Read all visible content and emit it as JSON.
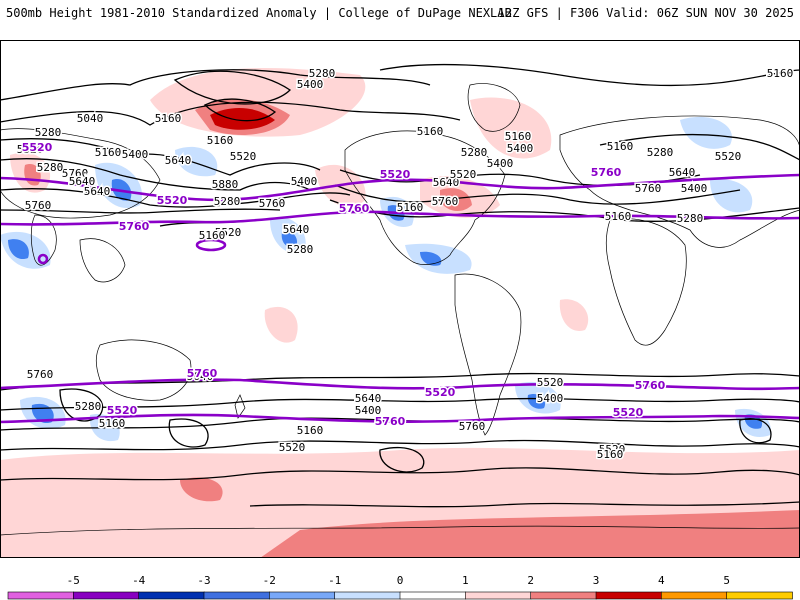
{
  "header": {
    "left": "500mb Height 1981-2010 Standardized Anomaly | College of DuPage NEXLAB",
    "right": "12Z GFS | F306 Valid: 06Z SUN NOV 30 2025"
  },
  "colors": {
    "land_outline": "#000000",
    "contour_black": "#000000",
    "contour_purple": "#8a00c8",
    "pos_light": "#ffd6d6",
    "pos_mid": "#f08080",
    "pos_dark": "#c80000",
    "neg_light": "#c8e0ff",
    "neg_mid": "#4080f0",
    "neg_dark": "#0030b0"
  },
  "contour_labels_black": [
    "5280",
    "5400",
    "5040",
    "5160",
    "5280",
    "5520",
    "5160",
    "5400",
    "5640",
    "5760",
    "5880",
    "5640",
    "5160",
    "5280",
    "5520",
    "5640",
    "5400",
    "5760",
    "5160",
    "5760",
    "5640",
    "5280",
    "5520",
    "5160",
    "5640",
    "5760",
    "5400",
    "5520",
    "5280",
    "5160",
    "5160",
    "5280",
    "5640",
    "5400",
    "5160",
    "5520",
    "5760",
    "5280",
    "5400",
    "5160",
    "5160",
    "5280",
    "5760",
    "5640",
    "5520",
    "5400",
    "5160",
    "5280",
    "5160",
    "5520",
    "5400",
    "5640",
    "5520",
    "5760",
    "5160"
  ],
  "contour_labels_purple": [
    "5520",
    "5760",
    "5520",
    "5760",
    "5520",
    "5760",
    "5760",
    "5520",
    "5760",
    "5520",
    "5760",
    "5520"
  ],
  "colorbar": {
    "ticks": [
      "-5",
      "-4",
      "-3",
      "-2",
      "-1",
      "0",
      "1",
      "2",
      "3",
      "4",
      "5"
    ],
    "colors": [
      "#e060e0",
      "#8800c0",
      "#0030b0",
      "#4070e0",
      "#78a8f8",
      "#c8e0ff",
      "#ffffff",
      "#ffd6d6",
      "#f08080",
      "#c80000",
      "#ff9900",
      "#ffcc00"
    ]
  }
}
